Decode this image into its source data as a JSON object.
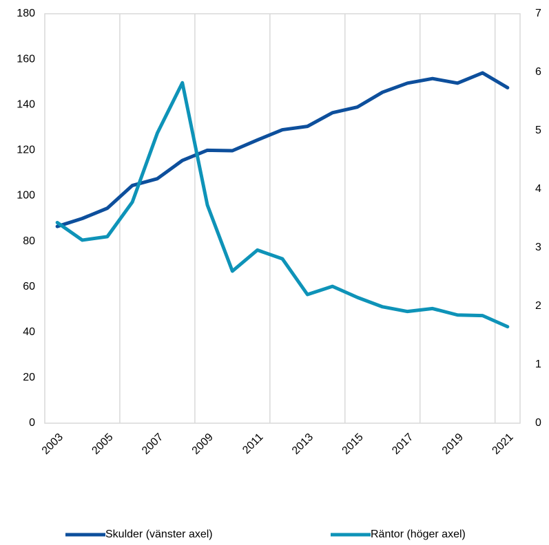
{
  "chart_data": {
    "type": "line",
    "categories": [
      "2003",
      null,
      "2005",
      null,
      "2007",
      null,
      "2009",
      null,
      "2011",
      null,
      "2013",
      null,
      "2015",
      null,
      "2017",
      null,
      "2019",
      null,
      "2021"
    ],
    "series": [
      {
        "name": "Skulder (vänster axel)",
        "color": "#0d4f9c",
        "axis": "y",
        "values": [
          86.5,
          90,
          94.5,
          104.5,
          107.5,
          115.5,
          120,
          119.8,
          124.5,
          129,
          130.5,
          136.5,
          139,
          145.5,
          149.5,
          151.5,
          149.5,
          154,
          147.5
        ]
      },
      {
        "name": "Räntor (höger axel)",
        "color": "#0e93b8",
        "axis": "y2",
        "values": [
          3.43,
          3.13,
          3.19,
          3.78,
          4.96,
          5.82,
          3.73,
          2.6,
          2.96,
          2.81,
          2.2,
          2.34,
          2.15,
          1.99,
          1.91,
          1.96,
          1.85,
          1.84,
          1.65
        ]
      }
    ],
    "ylim": [
      0,
      180
    ],
    "yticks": [
      0,
      20,
      40,
      60,
      80,
      100,
      120,
      140,
      160,
      180
    ],
    "y2lim": [
      0,
      7
    ],
    "y2ticks": [
      0,
      1,
      2,
      3,
      4,
      5,
      6,
      7
    ],
    "grid": "vertical",
    "legend": "bottom"
  }
}
